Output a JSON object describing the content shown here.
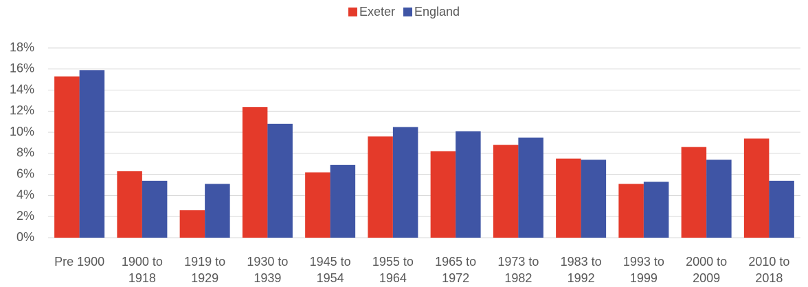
{
  "chart_data": {
    "type": "bar",
    "categories": [
      "Pre 1900",
      "1900 to 1918",
      "1919 to 1929",
      "1930 to 1939",
      "1945 to 1954",
      "1955 to 1964",
      "1965 to 1972",
      "1973 to 1982",
      "1983 to 1992",
      "1993 to 1999",
      "2000 to 2009",
      "2010 to 2018"
    ],
    "series": [
      {
        "name": "Exeter",
        "color": "#e43a2a",
        "values": [
          15.3,
          6.3,
          2.6,
          12.4,
          6.2,
          9.6,
          8.2,
          8.8,
          7.5,
          5.1,
          8.6,
          9.4
        ]
      },
      {
        "name": "England",
        "color": "#3f55a5",
        "values": [
          15.9,
          5.4,
          5.1,
          10.8,
          6.9,
          10.5,
          10.1,
          9.5,
          7.4,
          5.3,
          7.4,
          5.4
        ]
      }
    ],
    "ylim": [
      0,
      18
    ],
    "yticks": [
      {
        "value": 0,
        "label": "0%"
      },
      {
        "value": 2,
        "label": "2%"
      },
      {
        "value": 4,
        "label": "4%"
      },
      {
        "value": 6,
        "label": "6%"
      },
      {
        "value": 8,
        "label": "8%"
      },
      {
        "value": 10,
        "label": "10%"
      },
      {
        "value": 12,
        "label": "12%"
      },
      {
        "value": 14,
        "label": "14%"
      },
      {
        "value": 16,
        "label": "16%"
      },
      {
        "value": 18,
        "label": "18%"
      }
    ],
    "grid": true,
    "legend": "top"
  }
}
